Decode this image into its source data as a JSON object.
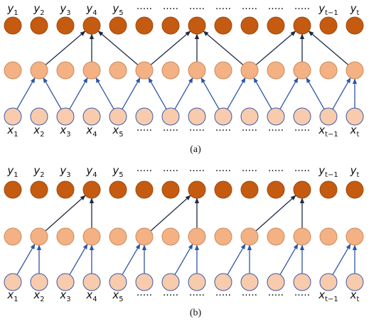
{
  "colors": {
    "output_fill": "#C55A11",
    "output_stroke": "#9E4A0E",
    "hidden_fill": "#F4B183",
    "hidden_stroke": "#C98A5E",
    "input_fill": "#F8CBAD",
    "input_stroke": "#3B5BA9",
    "edge_input": "#2F55A4",
    "edge_hidden": "#1F2A44"
  },
  "panels": [
    {
      "caption": "(a)",
      "y_labels": [
        "y1",
        "y2",
        "y3",
        "y4",
        "y5",
        "·····",
        "·····",
        "·····",
        "·····",
        "·····",
        "·····",
        "·····",
        "yt−1",
        "yt"
      ],
      "x_labels": [
        "x1",
        "x2",
        "x3",
        "x4",
        "x5",
        "·····",
        "·····",
        "·····",
        "·····",
        "·····",
        "·····",
        "·····",
        "xt−1",
        "xt"
      ],
      "input_to_hidden": [
        [
          0,
          1
        ],
        [
          2,
          1
        ],
        [
          2,
          3
        ],
        [
          4,
          3
        ],
        [
          4,
          5
        ],
        [
          6,
          5
        ],
        [
          6,
          7
        ],
        [
          8,
          7
        ],
        [
          8,
          9
        ],
        [
          10,
          9
        ],
        [
          10,
          11
        ],
        [
          12,
          11
        ],
        [
          12,
          13
        ],
        [
          13,
          13
        ]
      ],
      "hidden_to_output": [
        [
          1,
          3
        ],
        [
          3,
          3
        ],
        [
          5,
          3
        ],
        [
          5,
          7
        ],
        [
          7,
          7
        ],
        [
          9,
          7
        ],
        [
          9,
          11
        ],
        [
          11,
          11
        ],
        [
          13,
          11
        ]
      ]
    },
    {
      "caption": "(b)",
      "y_labels": [
        "y1",
        "y2",
        "y3",
        "y4",
        "y5",
        "·····",
        "·····",
        "·····",
        "·····",
        "·····",
        "·····",
        "·····",
        "yt−1",
        "yt"
      ],
      "x_labels": [
        "x1",
        "x2",
        "x3",
        "x4",
        "x5",
        "·····",
        "·····",
        "·····",
        "·····",
        "·····",
        "·····",
        "·····",
        "xt−1",
        "xt"
      ],
      "input_to_hidden": [
        [
          0,
          1
        ],
        [
          1,
          1
        ],
        [
          2,
          3
        ],
        [
          3,
          3
        ],
        [
          4,
          5
        ],
        [
          5,
          5
        ],
        [
          6,
          7
        ],
        [
          7,
          7
        ],
        [
          8,
          9
        ],
        [
          9,
          9
        ],
        [
          10,
          11
        ],
        [
          11,
          11
        ],
        [
          12,
          13
        ],
        [
          13,
          13
        ]
      ],
      "hidden_to_output": [
        [
          1,
          3
        ],
        [
          3,
          3
        ],
        [
          5,
          7
        ],
        [
          7,
          7
        ],
        [
          9,
          11
        ],
        [
          11,
          11
        ]
      ]
    }
  ]
}
